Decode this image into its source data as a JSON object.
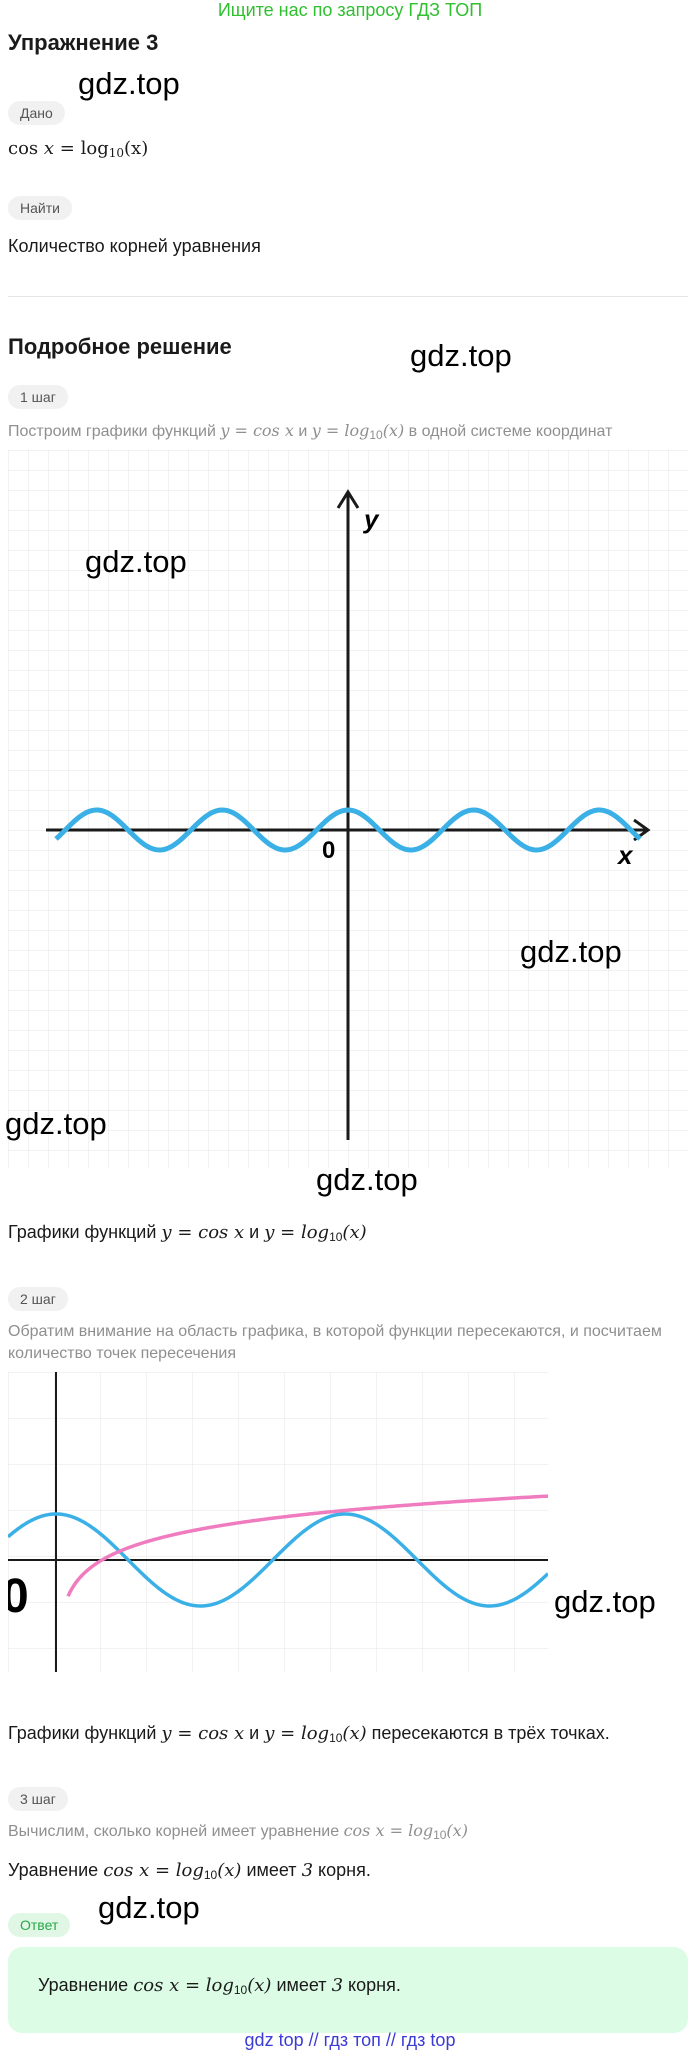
{
  "banner": "Ищите нас по запросу ГДЗ ТОП",
  "title": "Упражнение 3",
  "given_label": "Дано",
  "given_eq": {
    "lhs": "cos",
    "var": "x",
    "eq": "=",
    "log": "log",
    "base": "10",
    "arg": "(x)"
  },
  "find_label": "Найти",
  "find_text": "Количество корней уравнения",
  "solution_title": "Подробное решение",
  "step1": {
    "label": "1 шаг",
    "pre": "Построим графики функций",
    "y1": "y = cos x",
    "and": "и",
    "y2": "y = log",
    "y2_base": "10",
    "y2_arg": "(x)",
    "post": "в одной системе координат"
  },
  "graph1": {
    "y_label": "y",
    "x_label": "x",
    "origin": "0"
  },
  "caption1": {
    "pre": "Графики функций",
    "y1": "y = cos x",
    "and": "и",
    "y2": "y = log",
    "base": "10",
    "arg": "(x)"
  },
  "step2": {
    "label": "2 шаг",
    "text": "Обратим внимание на область графика, в которой функции пересекаются, и посчитаем количество точек пересечения"
  },
  "caption2": {
    "pre": "Графики функций",
    "y1": "y = cos x",
    "and": "и",
    "y2": "y = log",
    "base": "10",
    "arg": "(x)",
    "post": "пересекаются в трёх точках."
  },
  "step3": {
    "label": "3 шаг",
    "pre": "Вычислим, сколько корней имеет уравнение",
    "eq1": "cos x = log",
    "base": "10",
    "arg": "(x)"
  },
  "result": {
    "pre": "Уравнение",
    "eq": "cos x = log",
    "base": "10",
    "arg": "(x)",
    "mid": "имеет",
    "num": "3",
    "post": "корня."
  },
  "answer_label": "Ответ",
  "answer": {
    "pre": "Уравнение",
    "eq": "cos x = log",
    "base": "10",
    "arg": "(x)",
    "mid": "имеет",
    "num": "3",
    "post": "корня."
  },
  "watermark": "gdz.top",
  "crop_glyph": "0",
  "footer": "gdz top  //  гдз топ  //  гдз top",
  "colors": {
    "cos": "#3bb0e6",
    "log": "#f07cc0",
    "grid": "#e4e4e4",
    "banner": "#2fbf2f"
  }
}
